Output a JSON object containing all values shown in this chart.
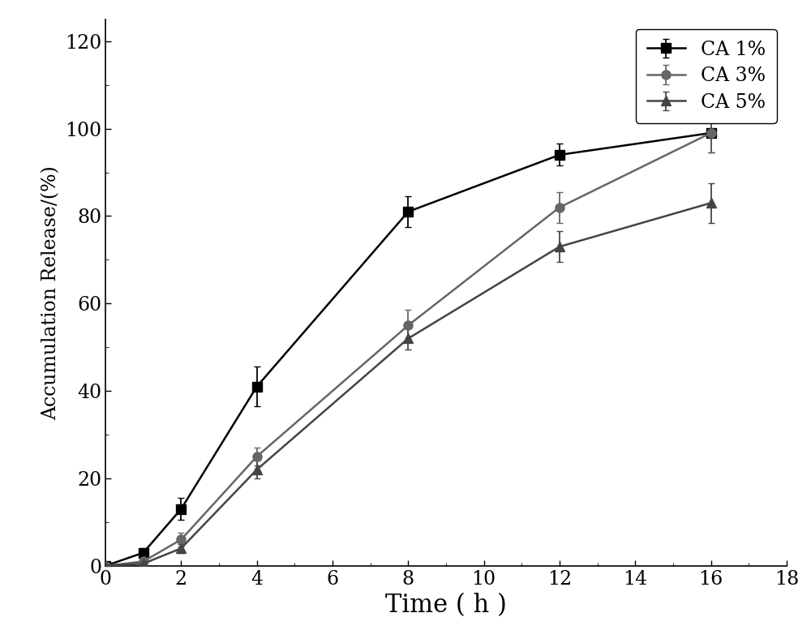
{
  "series": [
    {
      "label": "CA 1%",
      "color": "#000000",
      "marker": "s",
      "x": [
        0,
        1,
        2,
        4,
        8,
        12,
        16
      ],
      "y": [
        0,
        3,
        13,
        41,
        81,
        94,
        99
      ],
      "yerr": [
        0,
        1.0,
        2.5,
        4.5,
        3.5,
        2.5,
        4.5
      ]
    },
    {
      "label": "CA 3%",
      "color": "#666666",
      "marker": "o",
      "x": [
        0,
        1,
        2,
        4,
        8,
        12,
        16
      ],
      "y": [
        0,
        1,
        6,
        25,
        55,
        82,
        99
      ],
      "yerr": [
        0,
        0.5,
        1.5,
        2.0,
        3.5,
        3.5,
        4.5
      ]
    },
    {
      "label": "CA 5%",
      "color": "#444444",
      "marker": "^",
      "x": [
        0,
        1,
        2,
        4,
        8,
        12,
        16
      ],
      "y": [
        0,
        0.5,
        4,
        22,
        52,
        73,
        83
      ],
      "yerr": [
        0,
        0.3,
        1.0,
        2.0,
        2.5,
        3.5,
        4.5
      ]
    }
  ],
  "xlabel": "Time ( h )",
  "ylabel": "Accumulation Release/(%)",
  "xlim": [
    0,
    18
  ],
  "ylim": [
    0,
    125
  ],
  "yticks": [
    0,
    20,
    40,
    60,
    80,
    100,
    120
  ],
  "xticks": [
    0,
    2,
    4,
    6,
    8,
    10,
    12,
    14,
    16,
    18
  ],
  "background_color": "#ffffff",
  "linewidth": 1.8,
  "markersize": 8,
  "capsize": 3,
  "xlabel_fontsize": 22,
  "ylabel_fontsize": 17,
  "tick_fontsize": 17,
  "legend_fontsize": 17
}
